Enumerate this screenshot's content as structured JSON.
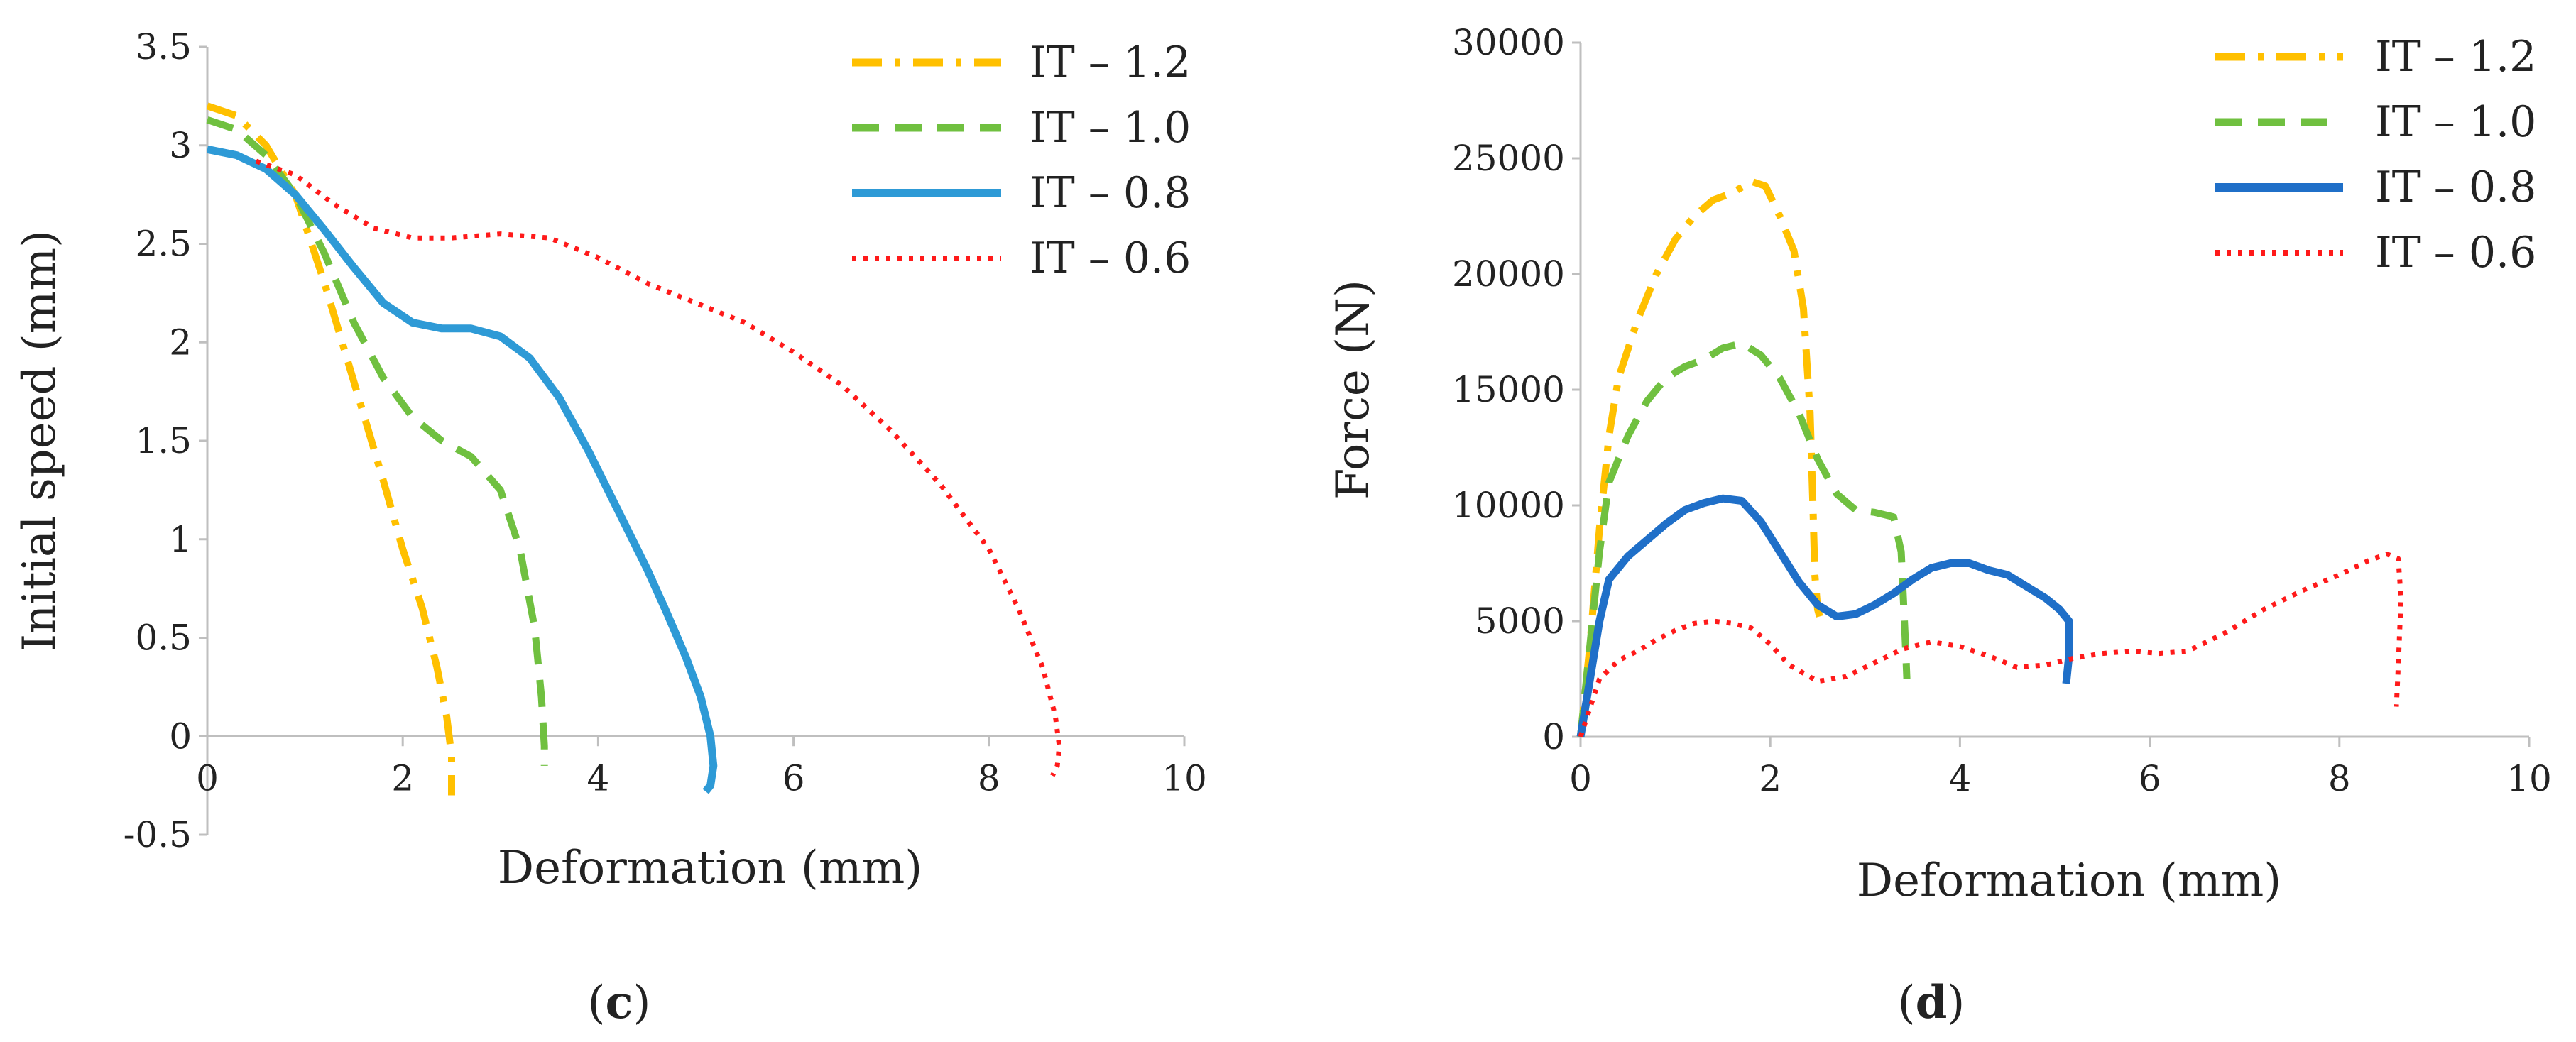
{
  "colors": {
    "IT-1.2": "#FFC000",
    "IT-1.0": "#70C040",
    "IT-0.8": "#2E9AD6",
    "IT-0.8-force": "#1F6FC8",
    "IT-0.6": "#FF1A1A",
    "axis": "#BFBFBF",
    "text": "#222222"
  },
  "chart_data": [
    {
      "type": "line",
      "panel": "c",
      "caption": {
        "open": "(",
        "letter": "c",
        "close": ")"
      },
      "xlabel": "Deformation (mm)",
      "ylabel": "Initial speed (mm)",
      "xlim": [
        0,
        10
      ],
      "ylim": [
        -0.5,
        3.5
      ],
      "xticks": [
        0,
        2,
        4,
        6,
        8,
        10
      ],
      "xtick_labels": [
        "0",
        "2",
        "4",
        "6",
        "8",
        "10"
      ],
      "yticks": [
        -0.5,
        0,
        0.5,
        1,
        1.5,
        2,
        2.5,
        3,
        3.5
      ],
      "ytick_labels": [
        "-0.5",
        "0",
        "0.5",
        "1",
        "1.5",
        "2",
        "2.5",
        "3",
        "3.5"
      ],
      "legend_position": "top-right",
      "series": [
        {
          "name": "IT – 1.2",
          "key": "IT-1.2",
          "style": "dashdot",
          "x": [
            0,
            0.3,
            0.6,
            0.9,
            1.2,
            1.5,
            1.8,
            2.0,
            2.2,
            2.35,
            2.45,
            2.5,
            2.5
          ],
          "y": [
            3.2,
            3.15,
            3.0,
            2.75,
            2.3,
            1.8,
            1.3,
            0.95,
            0.65,
            0.35,
            0.1,
            -0.1,
            -0.3
          ]
        },
        {
          "name": "IT – 1.0",
          "key": "IT-1.0",
          "style": "dashed",
          "x": [
            0,
            0.3,
            0.6,
            0.9,
            1.2,
            1.5,
            1.8,
            2.1,
            2.4,
            2.7,
            3.0,
            3.2,
            3.35,
            3.42,
            3.45,
            3.45
          ],
          "y": [
            3.13,
            3.08,
            2.95,
            2.75,
            2.45,
            2.1,
            1.82,
            1.62,
            1.5,
            1.42,
            1.25,
            0.95,
            0.55,
            0.2,
            -0.05,
            -0.15
          ]
        },
        {
          "name": "IT – 0.8",
          "key": "IT-0.8",
          "style": "solid",
          "x": [
            0,
            0.3,
            0.6,
            0.9,
            1.2,
            1.5,
            1.8,
            2.1,
            2.4,
            2.7,
            3.0,
            3.3,
            3.6,
            3.9,
            4.2,
            4.5,
            4.7,
            4.9,
            5.05,
            5.15,
            5.18,
            5.15,
            5.1
          ],
          "y": [
            2.98,
            2.95,
            2.88,
            2.75,
            2.57,
            2.38,
            2.2,
            2.1,
            2.07,
            2.07,
            2.03,
            1.92,
            1.72,
            1.45,
            1.15,
            0.85,
            0.63,
            0.4,
            0.2,
            0.0,
            -0.15,
            -0.25,
            -0.28
          ]
        },
        {
          "name": "IT – 0.6",
          "key": "IT-0.6",
          "style": "dotted",
          "x": [
            0.5,
            0.9,
            1.3,
            1.7,
            2.1,
            2.5,
            3.0,
            3.5,
            4.0,
            4.5,
            5.0,
            5.5,
            6.0,
            6.5,
            7.0,
            7.5,
            8.0,
            8.3,
            8.55,
            8.68,
            8.72,
            8.7,
            8.65
          ],
          "y": [
            2.92,
            2.85,
            2.7,
            2.58,
            2.53,
            2.53,
            2.55,
            2.53,
            2.43,
            2.3,
            2.2,
            2.1,
            1.95,
            1.78,
            1.55,
            1.28,
            0.95,
            0.65,
            0.35,
            0.1,
            -0.05,
            -0.15,
            -0.2
          ]
        }
      ]
    },
    {
      "type": "line",
      "panel": "d",
      "caption": {
        "open": "(",
        "letter": "d",
        "close": ")"
      },
      "xlabel": "Deformation (mm)",
      "ylabel": "Force (N)",
      "xlim": [
        0,
        10
      ],
      "ylim": [
        0,
        30000
      ],
      "xticks": [
        0,
        2,
        4,
        6,
        8,
        10
      ],
      "xtick_labels": [
        "0",
        "2",
        "4",
        "6",
        "8",
        "10"
      ],
      "yticks": [
        0,
        5000,
        10000,
        15000,
        20000,
        25000,
        30000
      ],
      "ytick_labels": [
        "0",
        "5000",
        "10000",
        "15000",
        "20000",
        "25000",
        "30000"
      ],
      "legend_position": "top-right",
      "series": [
        {
          "name": "IT – 1.2",
          "key": "IT-1.2",
          "style": "dashdot",
          "x": [
            0,
            0.1,
            0.2,
            0.3,
            0.4,
            0.6,
            0.8,
            1.0,
            1.2,
            1.4,
            1.6,
            1.8,
            1.95,
            2.1,
            2.25,
            2.35,
            2.42,
            2.45,
            2.47,
            2.5,
            2.52
          ],
          "y": [
            0,
            4000,
            9000,
            13000,
            15500,
            18000,
            20000,
            21500,
            22500,
            23200,
            23500,
            24000,
            23800,
            22500,
            21000,
            18500,
            14000,
            10000,
            7000,
            5500,
            5200
          ]
        },
        {
          "name": "IT – 1.0",
          "key": "IT-1.0",
          "style": "dashed",
          "x": [
            0,
            0.1,
            0.2,
            0.3,
            0.5,
            0.7,
            0.9,
            1.1,
            1.3,
            1.5,
            1.7,
            1.9,
            2.1,
            2.3,
            2.5,
            2.7,
            2.9,
            3.1,
            3.3,
            3.38,
            3.42,
            3.44
          ],
          "y": [
            0,
            4000,
            8000,
            11000,
            13000,
            14500,
            15500,
            16000,
            16300,
            16800,
            17000,
            16500,
            15500,
            14000,
            12000,
            10500,
            9800,
            9700,
            9500,
            8000,
            4500,
            2500
          ]
        },
        {
          "name": "IT – 0.8",
          "key": "IT-0.8-force",
          "style": "solid",
          "x": [
            0,
            0.1,
            0.2,
            0.3,
            0.5,
            0.7,
            0.9,
            1.1,
            1.3,
            1.5,
            1.7,
            1.9,
            2.1,
            2.3,
            2.5,
            2.7,
            2.9,
            3.1,
            3.3,
            3.5,
            3.7,
            3.9,
            4.1,
            4.3,
            4.5,
            4.7,
            4.9,
            5.05,
            5.15,
            5.15,
            5.12
          ],
          "y": [
            0,
            2500,
            5000,
            6800,
            7800,
            8500,
            9200,
            9800,
            10100,
            10300,
            10200,
            9300,
            8000,
            6700,
            5700,
            5200,
            5300,
            5700,
            6200,
            6800,
            7300,
            7500,
            7500,
            7200,
            7000,
            6500,
            6000,
            5500,
            5000,
            3500,
            2300
          ]
        },
        {
          "name": "IT – 0.6",
          "key": "IT-0.6",
          "style": "dotted",
          "x": [
            0,
            0.2,
            0.4,
            0.6,
            0.8,
            1.0,
            1.2,
            1.4,
            1.6,
            1.8,
            2.0,
            2.2,
            2.5,
            2.8,
            3.1,
            3.4,
            3.7,
            4.0,
            4.3,
            4.6,
            4.9,
            5.2,
            5.5,
            5.8,
            6.1,
            6.4,
            6.8,
            7.2,
            7.6,
            8.0,
            8.3,
            8.5,
            8.62,
            8.65,
            8.62,
            8.6
          ],
          "y": [
            0,
            2500,
            3300,
            3700,
            4200,
            4600,
            4900,
            5000,
            4900,
            4700,
            4000,
            3100,
            2400,
            2600,
            3200,
            3800,
            4100,
            3900,
            3500,
            3000,
            3100,
            3400,
            3600,
            3700,
            3600,
            3700,
            4500,
            5500,
            6300,
            7000,
            7600,
            7900,
            7700,
            6000,
            3000,
            1300
          ]
        }
      ]
    }
  ]
}
